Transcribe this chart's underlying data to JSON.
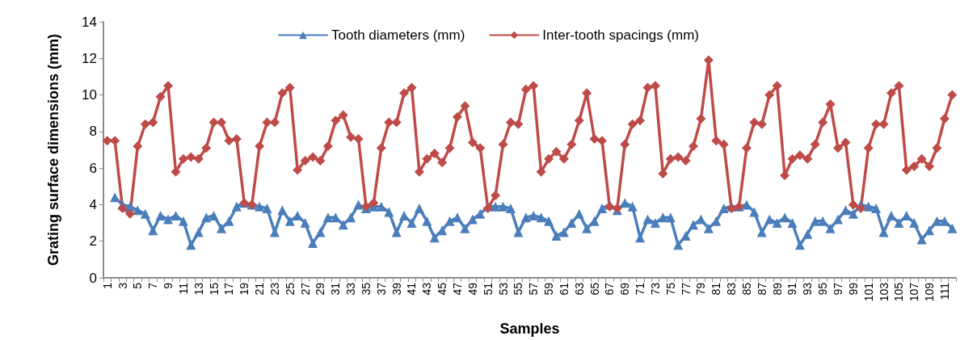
{
  "chart_data": {
    "type": "line",
    "xlabel": "Samples",
    "ylabel": "Grating surface dimensions (mm)",
    "categories": [
      "1",
      null,
      "3",
      null,
      "5",
      null,
      "7",
      null,
      "9",
      null,
      "11",
      null,
      "13",
      null,
      "15",
      null,
      "17",
      null,
      "19",
      null,
      "21",
      null,
      "23",
      null,
      "25",
      null,
      "27",
      null,
      "29",
      null,
      "31",
      null,
      "33",
      null,
      "35",
      null,
      "37",
      null,
      "39",
      null,
      "41",
      null,
      "43",
      null,
      "45",
      null,
      "47",
      null,
      "49",
      null,
      "51",
      null,
      "53",
      null,
      "55",
      null,
      "57",
      null,
      "59",
      null,
      "61",
      null,
      "63",
      null,
      "65",
      null,
      "67",
      null,
      "69",
      null,
      "71",
      null,
      "73",
      null,
      "75",
      null,
      "77",
      null,
      "79",
      null,
      "81",
      null,
      "83",
      null,
      "85",
      null,
      "87",
      null,
      "89",
      null,
      "91",
      null,
      "93",
      null,
      "95",
      null,
      "97",
      null,
      "99",
      null,
      "101",
      null,
      "103",
      null,
      "105",
      null,
      "107",
      null,
      "109",
      null,
      "111",
      null
    ],
    "series": [
      {
        "name": "Tooth diameters (mm)",
        "color": "#4a7ebb",
        "marker": "triangle",
        "values": [
          null,
          4.4,
          4.0,
          3.9,
          3.7,
          3.5,
          2.6,
          3.4,
          3.2,
          3.4,
          3.1,
          1.8,
          2.5,
          3.3,
          3.4,
          2.7,
          3.1,
          3.9,
          4.1,
          4.0,
          3.9,
          3.8,
          2.5,
          3.7,
          3.1,
          3.4,
          3.0,
          1.9,
          2.5,
          3.3,
          3.3,
          2.9,
          3.3,
          4.0,
          3.8,
          3.9,
          3.9,
          3.6,
          2.5,
          3.4,
          3.0,
          3.8,
          3.1,
          2.2,
          2.6,
          3.1,
          3.3,
          2.7,
          3.2,
          3.5,
          3.9,
          3.9,
          3.9,
          3.8,
          2.5,
          3.3,
          3.4,
          3.3,
          3.1,
          2.3,
          2.5,
          3.0,
          3.5,
          2.7,
          3.1,
          3.8,
          4.0,
          3.7,
          4.1,
          3.9,
          2.2,
          3.2,
          3.0,
          3.3,
          3.3,
          1.8,
          2.3,
          2.9,
          3.2,
          2.7,
          3.1,
          3.8,
          3.9,
          3.9,
          4.0,
          3.6,
          2.5,
          3.2,
          3.0,
          3.3,
          3.0,
          1.8,
          2.4,
          3.1,
          3.1,
          2.7,
          3.2,
          3.7,
          3.5,
          4.0,
          3.9,
          3.8,
          2.5,
          3.4,
          3.0,
          3.4,
          3.0,
          2.1,
          2.6,
          3.1,
          3.1,
          2.7
        ]
      },
      {
        "name": "Inter-tooth spacings (mm)",
        "color": "#be4b48",
        "marker": "diamond",
        "values": [
          7.5,
          7.5,
          3.8,
          3.5,
          7.2,
          8.4,
          8.5,
          9.9,
          10.5,
          5.8,
          6.5,
          6.6,
          6.5,
          7.1,
          8.5,
          8.5,
          7.5,
          7.6,
          4.1,
          4.0,
          7.2,
          8.5,
          8.5,
          10.1,
          10.4,
          5.9,
          6.4,
          6.6,
          6.4,
          7.2,
          8.6,
          8.9,
          7.7,
          7.6,
          3.9,
          4.1,
          7.1,
          8.5,
          8.5,
          10.1,
          10.4,
          5.8,
          6.5,
          6.8,
          6.3,
          7.1,
          8.8,
          9.4,
          7.4,
          7.1,
          3.8,
          4.5,
          7.3,
          8.5,
          8.4,
          10.3,
          10.5,
          5.8,
          6.5,
          6.9,
          6.5,
          7.3,
          8.6,
          10.1,
          7.6,
          7.5,
          3.9,
          3.8,
          7.3,
          8.4,
          8.6,
          10.4,
          10.5,
          5.7,
          6.5,
          6.6,
          6.4,
          7.2,
          8.7,
          11.9,
          7.5,
          7.3,
          3.8,
          3.9,
          7.1,
          8.5,
          8.4,
          10.0,
          10.5,
          5.6,
          6.5,
          6.7,
          6.5,
          7.3,
          8.5,
          9.5,
          7.1,
          7.4,
          4.0,
          3.8,
          7.1,
          8.4,
          8.4,
          10.1,
          10.5,
          5.9,
          6.1,
          6.5,
          6.1,
          7.1,
          8.7,
          10.0
        ]
      }
    ],
    "ylim": [
      0,
      14
    ],
    "yticks": [
      0,
      2,
      4,
      6,
      8,
      10,
      12,
      14
    ],
    "legend": "top"
  }
}
